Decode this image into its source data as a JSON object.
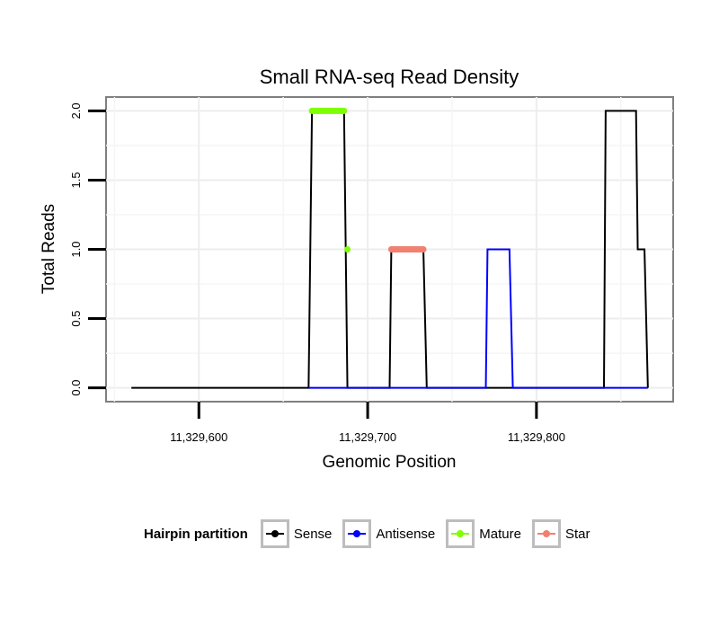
{
  "chart_data": {
    "type": "line",
    "title": "Small RNA-seq Read Density",
    "xlabel": "Genomic Position",
    "ylabel": "Total Reads",
    "xlim": [
      11329545,
      11329881
    ],
    "ylim": [
      -0.1,
      2.1
    ],
    "x_ticks": [
      11329600,
      11329700,
      11329800
    ],
    "x_tick_labels": [
      "11,329,600",
      "11,329,700",
      "11,329,800"
    ],
    "y_ticks": [
      0,
      0.5,
      1,
      1.5,
      2
    ],
    "y_tick_labels": [
      "0.0",
      "0.5",
      "1.0",
      "1.5",
      "2.0"
    ],
    "grid": true,
    "legend_position": "bottom",
    "legend_title": "Hairpin partition",
    "series": [
      {
        "name": "Sense",
        "color": "#000000",
        "x": [
          11329560,
          11329665,
          11329667,
          11329686,
          11329688,
          11329713,
          11329714,
          11329733,
          11329735,
          11329840,
          11329841,
          11329859,
          11329860,
          11329864,
          11329866
        ],
        "y": [
          0,
          0,
          2,
          2,
          0,
          0,
          1,
          1,
          0,
          0,
          2,
          2,
          1,
          1,
          0
        ]
      },
      {
        "name": "Antisense",
        "color": "#0000ff",
        "x": [
          11329665,
          11329770,
          11329771,
          11329784,
          11329786,
          11329866
        ],
        "y": [
          0,
          0,
          1,
          1,
          0,
          0
        ]
      },
      {
        "name": "Mature",
        "color": "#7fff00",
        "segments": [
          {
            "x": [
              11329667,
              11329686
            ],
            "y": [
              2,
              2
            ]
          },
          {
            "x": [
              11329688,
              11329688
            ],
            "y": [
              1,
              1
            ]
          }
        ]
      },
      {
        "name": "Star",
        "color": "#f08070",
        "segments": [
          {
            "x": [
              11329714,
              11329733
            ],
            "y": [
              1,
              1
            ]
          }
        ]
      }
    ]
  }
}
